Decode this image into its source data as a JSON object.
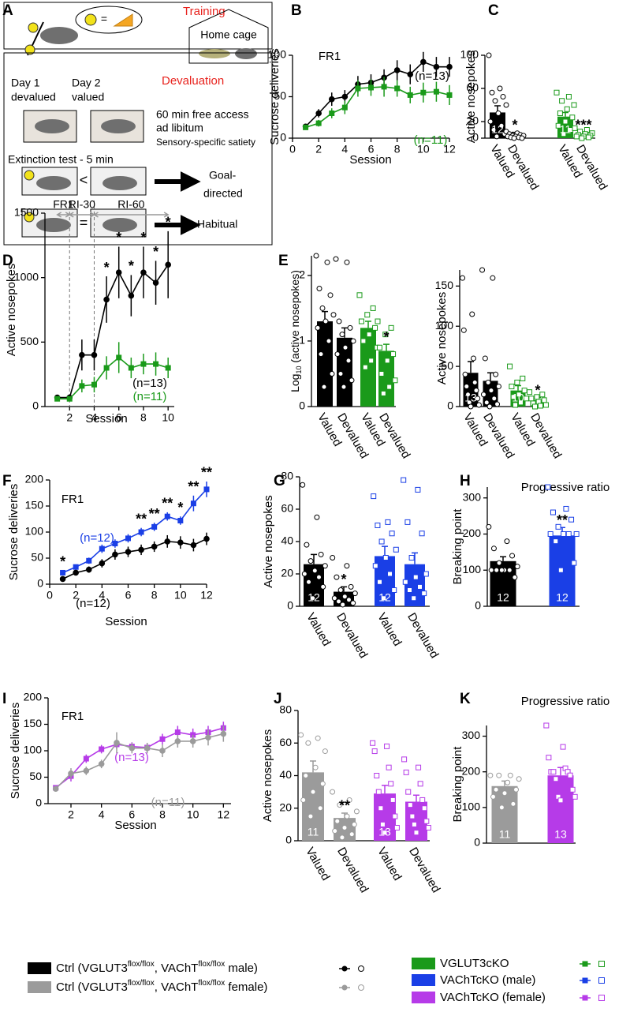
{
  "diagram": {
    "panel": "A",
    "training": "Training",
    "bubble_equal": "=",
    "home_cage": "Home cage",
    "devaluation": "Devaluation",
    "day1": "Day 1",
    "devalued": "devalued",
    "day2": "Day 2",
    "valued": "valued",
    "access": "60 min free access",
    "ad_libitum": "ad libitum",
    "satiety": "Sensory-specific satiety",
    "extinction": "Extinction test - 5 min",
    "less": "<",
    "goal": "Goal-",
    "directed": "directed",
    "equal": "=",
    "habitual": "Habitual"
  },
  "chart_data": [
    {
      "panel": "B",
      "type": "line",
      "title": "FR1",
      "ylabel": "Sucrose deliveries",
      "xlabel": "Session",
      "x": [
        1,
        2,
        3,
        4,
        5,
        6,
        7,
        8,
        9,
        10,
        11,
        12
      ],
      "xlim": [
        0,
        12
      ],
      "xticks": [
        0,
        2,
        4,
        6,
        8,
        10,
        12
      ],
      "ylim": [
        0,
        100
      ],
      "yticks": [
        0,
        50,
        100
      ],
      "series": [
        {
          "label": "(n=13)",
          "color": "#000000",
          "marker": "circle",
          "values": [
            14,
            30,
            47,
            50,
            65,
            67,
            73,
            82,
            77,
            92,
            86,
            86
          ],
          "errors": [
            2,
            5,
            8,
            8,
            10,
            10,
            10,
            12,
            12,
            12,
            12,
            12
          ]
        },
        {
          "label": "(n=11)",
          "color": "#1a9a1a",
          "marker": "square",
          "values": [
            13,
            18,
            30,
            37,
            60,
            61,
            62,
            60,
            52,
            55,
            56,
            52
          ],
          "errors": [
            2,
            4,
            6,
            8,
            10,
            10,
            12,
            10,
            10,
            12,
            12,
            12
          ]
        }
      ]
    },
    {
      "panel": "C",
      "type": "bar",
      "ylabel": "Active nosepokes",
      "ylim": [
        0,
        100
      ],
      "yticks": [
        0,
        20,
        60,
        100
      ],
      "categories": [
        "Valued",
        "Devalued",
        "Valued",
        "Devalued"
      ],
      "values": [
        31,
        5,
        26,
        5
      ],
      "errors": [
        8,
        2,
        5,
        2
      ],
      "colors": [
        "#000000",
        "#000000",
        "#1a9a1a",
        "#1a9a1a"
      ],
      "markers": [
        "circle",
        "circle",
        "square",
        "square"
      ],
      "points": [
        [
          100,
          60,
          55,
          50,
          45,
          40,
          30,
          20,
          15,
          10,
          5,
          2
        ],
        [
          8,
          6,
          5,
          4,
          3,
          3,
          2,
          2,
          1,
          1,
          0,
          0
        ],
        [
          55,
          50,
          45,
          40,
          35,
          30,
          25,
          20,
          15,
          10,
          5
        ],
        [
          12,
          10,
          8,
          6,
          5,
          4,
          3,
          2,
          2,
          1,
          0
        ]
      ],
      "bar_labels": [
        "12",
        null,
        "11",
        null
      ],
      "significance": [
        null,
        "*",
        null,
        "***"
      ]
    },
    {
      "panel": "D",
      "type": "line",
      "ylabel": "Active nosepokes",
      "xlabel": "Session",
      "x": [
        1,
        2,
        3,
        4,
        5,
        6,
        7,
        8,
        9,
        10
      ],
      "xlim": [
        0,
        10.5
      ],
      "xticks": [
        2,
        4,
        6,
        8,
        10
      ],
      "ylim": [
        0,
        1500
      ],
      "yticks": [
        0,
        500,
        1000,
        1500
      ],
      "phases": [
        {
          "label": "FR1",
          "from": 1,
          "to": 2
        },
        {
          "label": "RI-30",
          "from": 2,
          "to": 4
        },
        {
          "label": "RI-60",
          "from": 4,
          "to": 10
        }
      ],
      "significance": [
        null,
        null,
        null,
        null,
        "*",
        "*",
        "*",
        "*",
        "*",
        "*"
      ],
      "series": [
        {
          "label": "(n=13)",
          "color": "#000000",
          "marker": "circle",
          "values": [
            70,
            70,
            400,
            400,
            830,
            1040,
            860,
            1040,
            960,
            1100
          ],
          "errors": [
            15,
            15,
            120,
            120,
            180,
            200,
            160,
            200,
            170,
            260
          ]
        },
        {
          "label": "(n=11)",
          "color": "#1a9a1a",
          "marker": "square",
          "values": [
            60,
            60,
            160,
            170,
            300,
            380,
            300,
            330,
            330,
            300
          ],
          "errors": [
            10,
            10,
            50,
            60,
            90,
            120,
            80,
            80,
            90,
            80
          ]
        }
      ]
    },
    {
      "panel": "E",
      "type": "bar",
      "ylabel_parts": [
        "Log",
        "10",
        " (active nosepokes)"
      ],
      "ylim": [
        0,
        2.3
      ],
      "yticks": [
        0,
        1,
        2
      ],
      "categories": [
        "Valued",
        "Devalued",
        "Valued",
        "Devalued"
      ],
      "values": [
        1.3,
        1.05,
        1.2,
        0.85
      ],
      "errors": [
        0.15,
        0.15,
        0.1,
        0.1
      ],
      "colors": [
        "#000000",
        "#000000",
        "#1a9a1a",
        "#1a9a1a"
      ],
      "markers": [
        "circle",
        "circle",
        "square",
        "square"
      ],
      "points": [
        [
          2.3,
          2.2,
          1.8,
          1.7,
          1.5,
          1.4,
          1.3,
          1.2,
          1.0,
          0.8,
          0.5,
          0.3
        ],
        [
          2.25,
          2.2,
          1.3,
          1.2,
          1.1,
          1.0,
          0.9,
          0.8,
          0.7,
          0.5,
          0.4,
          0.3
        ],
        [
          1.7,
          1.5,
          1.4,
          1.3,
          1.2,
          1.1,
          1.0,
          0.9,
          0.7,
          0.6
        ],
        [
          1.3,
          1.2,
          1.1,
          0.9,
          0.8,
          0.7,
          0.5,
          0.4,
          0.3,
          0.2
        ]
      ],
      "significance": [
        null,
        null,
        null,
        "*"
      ]
    },
    {
      "type": "bar",
      "ylabel": "Active nosepokes",
      "ylim": [
        0,
        170
      ],
      "yticks": [
        0,
        50,
        100,
        150
      ],
      "categories": [
        "Valued",
        "Devalued",
        "Valued",
        "Devalued"
      ],
      "values": [
        42,
        32,
        20,
        8
      ],
      "errors": [
        14,
        10,
        6,
        3
      ],
      "colors": [
        "#000000",
        "#000000",
        "#1a9a1a",
        "#1a9a1a"
      ],
      "markers": [
        "circle",
        "circle",
        "square",
        "square"
      ],
      "points": [
        [
          160,
          115,
          95,
          60,
          40,
          30,
          25,
          20,
          15,
          10,
          5,
          2,
          0
        ],
        [
          170,
          160,
          60,
          40,
          30,
          25,
          20,
          15,
          10,
          5,
          3,
          0
        ],
        [
          50,
          35,
          30,
          25,
          20,
          15,
          12,
          10,
          5,
          2
        ],
        [
          18,
          15,
          12,
          10,
          8,
          6,
          4,
          2,
          1,
          0
        ]
      ],
      "bar_labels": [
        "13",
        null,
        "10",
        null
      ],
      "significance": [
        null,
        null,
        null,
        "*"
      ]
    },
    {
      "panel": "F",
      "type": "line",
      "title": "FR1",
      "ylabel": "Sucrose deliveries",
      "xlabel": "Session",
      "x": [
        1,
        2,
        3,
        4,
        5,
        6,
        7,
        8,
        9,
        10,
        11,
        12
      ],
      "xlim": [
        0,
        12
      ],
      "xticks": [
        0,
        2,
        4,
        6,
        8,
        10,
        12
      ],
      "ylim": [
        0,
        200
      ],
      "yticks": [
        0,
        50,
        100,
        150,
        200
      ],
      "significance": [
        "*",
        null,
        null,
        null,
        null,
        null,
        "**",
        "**",
        "**",
        "*",
        "**",
        "**"
      ],
      "series": [
        {
          "label": "(n=12)",
          "color": "#1a3fe6",
          "marker": "square",
          "values": [
            22,
            33,
            45,
            68,
            78,
            88,
            100,
            110,
            130,
            122,
            155,
            182
          ],
          "errors": [
            4,
            5,
            6,
            8,
            8,
            8,
            8,
            8,
            8,
            8,
            15,
            15
          ]
        },
        {
          "label": "(n=12)",
          "color": "#000000",
          "marker": "circle",
          "values": [
            10,
            22,
            28,
            40,
            57,
            62,
            66,
            72,
            82,
            80,
            75,
            87
          ],
          "errors": [
            3,
            5,
            6,
            8,
            10,
            10,
            10,
            10,
            12,
            12,
            12,
            12
          ]
        }
      ]
    },
    {
      "panel": "G",
      "type": "bar",
      "ylabel": "Active nosepokes",
      "ylim": [
        0,
        80
      ],
      "yticks": [
        0,
        20,
        40,
        60,
        80
      ],
      "categories": [
        "Valued",
        "Devalued",
        "Valued",
        "Devalued"
      ],
      "values": [
        26,
        9,
        31,
        26
      ],
      "errors": [
        6,
        3,
        6,
        7
      ],
      "colors": [
        "#000000",
        "#000000",
        "#1a3fe6",
        "#1a3fe6"
      ],
      "markers": [
        "circle",
        "circle",
        "square",
        "square"
      ],
      "points": [
        [
          75,
          55,
          38,
          32,
          28,
          25,
          22,
          20,
          18,
          15,
          12,
          5
        ],
        [
          30,
          25,
          18,
          12,
          10,
          8,
          6,
          5,
          4,
          3,
          2,
          1
        ],
        [
          68,
          52,
          50,
          45,
          40,
          35,
          30,
          25,
          20,
          15,
          10,
          5
        ],
        [
          78,
          72,
          52,
          45,
          30,
          20,
          18,
          15,
          12,
          10,
          8,
          5
        ]
      ],
      "bar_labels": [
        "12",
        null,
        "12",
        null
      ],
      "significance": [
        null,
        "*",
        null,
        null
      ]
    },
    {
      "panel": "H",
      "type": "bar",
      "title": "Progressive ratio",
      "ylabel": "Breaking point",
      "ylim": [
        0,
        330
      ],
      "yticks": [
        0,
        100,
        200,
        300
      ],
      "values": [
        125,
        196
      ],
      "errors": [
        12,
        22
      ],
      "colors": [
        "#000000",
        "#1a3fe6"
      ],
      "markers": [
        "circle",
        "square"
      ],
      "points": [
        [
          220,
          180,
          160,
          140,
          120,
          110,
          100,
          100,
          100,
          100,
          80,
          100
        ],
        [
          330,
          270,
          260,
          240,
          220,
          200,
          200,
          200,
          200,
          180,
          120,
          100
        ]
      ],
      "bar_labels": [
        "12",
        "12"
      ],
      "significance": [
        null,
        "**"
      ]
    },
    {
      "panel": "I",
      "type": "line",
      "title": "FR1",
      "ylabel": "Sucrose deliveries",
      "xlabel": "Session",
      "x": [
        1,
        2,
        3,
        4,
        5,
        6,
        7,
        8,
        9,
        10,
        11,
        12
      ],
      "xlim": [
        0.5,
        12.5
      ],
      "xticks": [
        2,
        4,
        6,
        8,
        10,
        12
      ],
      "ylim": [
        0,
        200
      ],
      "yticks": [
        0,
        50,
        100,
        150,
        200
      ],
      "series": [
        {
          "label": "(n=13)",
          "color": "#b63be8",
          "marker": "square",
          "values": [
            30,
            52,
            85,
            103,
            112,
            108,
            106,
            122,
            135,
            130,
            135,
            143
          ],
          "errors": [
            5,
            10,
            8,
            8,
            8,
            8,
            8,
            10,
            12,
            12,
            12,
            12
          ]
        },
        {
          "label": "(n=11)",
          "color": "#9b9b9b",
          "marker": "circle",
          "values": [
            28,
            57,
            62,
            75,
            115,
            105,
            105,
            100,
            118,
            118,
            125,
            132
          ],
          "errors": [
            5,
            10,
            8,
            8,
            20,
            10,
            10,
            12,
            12,
            12,
            15,
            15
          ]
        }
      ]
    },
    {
      "panel": "J",
      "type": "bar",
      "ylabel": "Active nosepokes",
      "ylim": [
        0,
        80
      ],
      "yticks": [
        0,
        20,
        40,
        60,
        80
      ],
      "categories": [
        "Valued",
        "Devalued",
        "Valued",
        "Devalued"
      ],
      "values": [
        42,
        14,
        29,
        24
      ],
      "errors": [
        7,
        3,
        5,
        4
      ],
      "colors": [
        "#9b9b9b",
        "#9b9b9b",
        "#b63be8",
        "#b63be8"
      ],
      "markers": [
        "circle",
        "circle",
        "square",
        "square"
      ],
      "points": [
        [
          65,
          63,
          60,
          55,
          45,
          40,
          35,
          30,
          25,
          20,
          15
        ],
        [
          30,
          25,
          22,
          18,
          15,
          12,
          10,
          8,
          6,
          4,
          2
        ],
        [
          60,
          58,
          55,
          45,
          40,
          35,
          30,
          25,
          20,
          15,
          10,
          8,
          5
        ],
        [
          50,
          45,
          42,
          35,
          30,
          25,
          22,
          20,
          15,
          12,
          10,
          8,
          5
        ]
      ],
      "bar_labels": [
        "11",
        null,
        "13",
        null
      ],
      "significance": [
        null,
        "**",
        null,
        null
      ]
    },
    {
      "panel": "K",
      "type": "bar",
      "title": "Progressive ratio",
      "ylabel": "Breaking point",
      "ylim": [
        0,
        330
      ],
      "yticks": [
        0,
        100,
        200,
        300
      ],
      "values": [
        160,
        190
      ],
      "errors": [
        14,
        22
      ],
      "colors": [
        "#9b9b9b",
        "#b63be8"
      ],
      "markers": [
        "circle",
        "square"
      ],
      "points": [
        [
          190,
          190,
          190,
          180,
          170,
          150,
          150,
          140,
          130,
          110,
          100
        ],
        [
          330,
          270,
          240,
          210,
          200,
          200,
          200,
          190,
          180,
          150,
          130,
          130,
          120
        ]
      ],
      "bar_labels": [
        "11",
        "13"
      ]
    }
  ],
  "legend": {
    "entries": [
      {
        "parts": [
          "Ctrl (VGLUT3",
          "flox/flox",
          ", VAChT",
          "flox/flox",
          " male)"
        ],
        "color": "#000000",
        "marker": "circle"
      },
      {
        "parts": [
          "Ctrl (VGLUT3",
          "flox/flox",
          ", VAChT",
          "flox/flox",
          " female)"
        ],
        "color": "#9b9b9b",
        "marker": "circle"
      },
      {
        "parts": [
          "VGLUT3cKO"
        ],
        "color": "#1a9a1a",
        "marker": "square"
      },
      {
        "parts": [
          "VAChTcKO (male)"
        ],
        "color": "#1a3fe6",
        "marker": "square"
      },
      {
        "parts": [
          "VAChTcKO (female)"
        ],
        "color": "#b63be8",
        "marker": "square"
      }
    ]
  }
}
